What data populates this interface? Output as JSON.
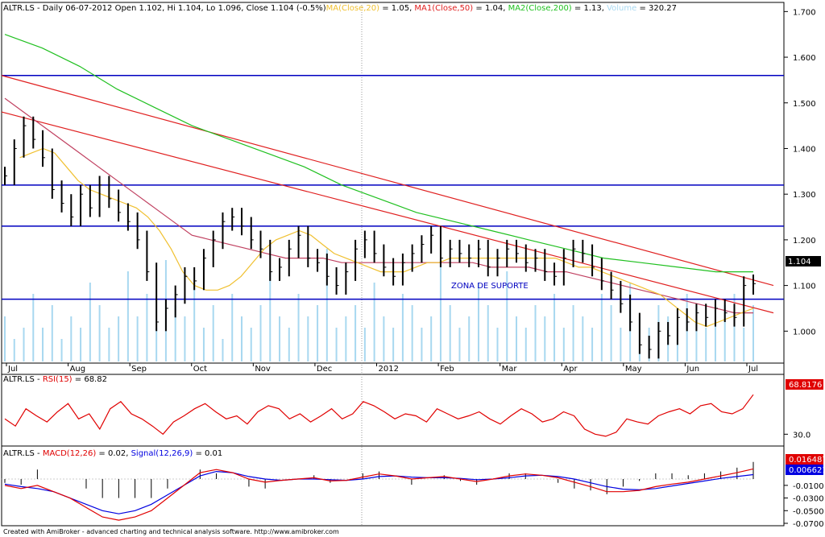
{
  "colors": {
    "background": "#ffffff",
    "price_bar": "#000000",
    "ma20": "#f0c030",
    "ma50": "#c04060",
    "ma200": "#20c020",
    "volume": "#a8d8f0",
    "trendline": "#e02020",
    "hline": "#0000c0",
    "rsi": "#e00000",
    "macd": "#e00000",
    "signal": "#0000e0",
    "hist": "#000000"
  },
  "header": {
    "price": {
      "prefix": "ALTR.LS - Daily 06-07-2012 Open 1.102, Hi 1.104, Lo 1.096, Close 1.104 (-0.5%)",
      "ma": "MA(Close,20)",
      "ma_val": " = 1.05, ",
      "ma1": "MA1(Close,50)",
      "ma1_val": " = 1.04, ",
      "ma2": "MA2(Close,200)",
      "ma2_val": " = 1.13, ",
      "vol": "Volume",
      "vol_val": " = 320.27"
    },
    "rsi": {
      "prefix": "ALTR.LS - ",
      "name": "RSI(15)",
      "val": " = 68.82"
    },
    "macd": {
      "prefix": "ALTR.LS - ",
      "name": "MACD(12,26)",
      "val": " = 0.02, ",
      "sig": "Signal(12,26,9)",
      "sig_val": " = 0.01"
    }
  },
  "annotation": "ZONA DE SUPORTE",
  "footer": "Created with AmiBroker - advanced charting and technical analysis software. http://www.amibroker.com",
  "chart_data": [
    {
      "type": "ohlc",
      "panel": "price",
      "symbol": "ALTR.LS",
      "ylim": [
        0.93,
        1.72
      ],
      "y_ticks": [
        "1.700",
        "1.600",
        "1.500",
        "1.400",
        "1.300",
        "1.200",
        "1.100",
        "1.000"
      ],
      "last_value_label": "1.104",
      "x_month_labels": [
        "Jul",
        "Aug",
        "Sep",
        "Oct",
        "Nov",
        "Dec",
        "2012",
        "Feb",
        "Mar",
        "Apr",
        "May",
        "Jun",
        "Jul"
      ],
      "series": [
        {
          "name": "Close",
          "values": [
            1.34,
            1.4,
            1.45,
            1.42,
            1.38,
            1.31,
            1.28,
            1.25,
            1.3,
            1.27,
            1.32,
            1.29,
            1.26,
            1.24,
            1.2,
            1.13,
            1.02,
            1.05,
            1.08,
            1.12,
            1.11,
            1.16,
            1.2,
            1.24,
            1.25,
            1.23,
            1.2,
            1.18,
            1.13,
            1.14,
            1.18,
            1.21,
            1.16,
            1.15,
            1.12,
            1.1,
            1.13,
            1.18,
            1.2,
            1.17,
            1.14,
            1.12,
            1.15,
            1.17,
            1.19,
            1.21,
            1.16,
            1.18,
            1.17,
            1.16,
            1.18,
            1.14,
            1.16,
            1.18,
            1.17,
            1.15,
            1.16,
            1.13,
            1.12,
            1.16,
            1.18,
            1.17,
            1.14,
            1.11,
            1.09,
            1.06,
            1.02,
            0.97,
            0.96,
            1.0,
            0.99,
            1.03,
            1.02,
            1.04,
            1.03,
            1.05,
            1.04,
            1.03,
            1.1,
            1.104
          ]
        },
        {
          "name": "MA(Close,20)",
          "values": [
            1.38,
            1.39,
            1.4,
            1.39,
            1.36,
            1.33,
            1.31,
            1.3,
            1.29,
            1.28,
            1.27,
            1.25,
            1.22,
            1.18,
            1.13,
            1.1,
            1.09,
            1.09,
            1.1,
            1.12,
            1.15,
            1.18,
            1.2,
            1.21,
            1.22,
            1.21,
            1.19,
            1.17,
            1.16,
            1.15,
            1.14,
            1.13,
            1.13,
            1.13,
            1.14,
            1.15,
            1.15,
            1.16,
            1.16,
            1.16,
            1.16,
            1.16,
            1.16,
            1.16,
            1.16,
            1.16,
            1.16,
            1.15,
            1.14,
            1.14,
            1.13,
            1.12,
            1.11,
            1.1,
            1.09,
            1.08,
            1.06,
            1.04,
            1.02,
            1.01,
            1.02,
            1.03,
            1.04,
            1.05
          ]
        },
        {
          "name": "MA1(Close,50)",
          "values": [
            1.51,
            1.48,
            1.45,
            1.42,
            1.39,
            1.36,
            1.33,
            1.3,
            1.27,
            1.24,
            1.21,
            1.2,
            1.19,
            1.18,
            1.17,
            1.16,
            1.16,
            1.16,
            1.15,
            1.15,
            1.15,
            1.15,
            1.15,
            1.15,
            1.15,
            1.15,
            1.14,
            1.14,
            1.14,
            1.13,
            1.13,
            1.12,
            1.11,
            1.1,
            1.09,
            1.08,
            1.07,
            1.06,
            1.05,
            1.04,
            1.04
          ]
        },
        {
          "name": "MA2(Close,200)",
          "values": [
            1.65,
            1.62,
            1.58,
            1.53,
            1.49,
            1.45,
            1.42,
            1.39,
            1.36,
            1.32,
            1.29,
            1.26,
            1.24,
            1.22,
            1.2,
            1.18,
            1.16,
            1.15,
            1.14,
            1.13,
            1.13
          ]
        },
        {
          "name": "Volume",
          "values": [
            0.4,
            0.2,
            0.3,
            0.6,
            0.3,
            0.5,
            0.2,
            0.4,
            0.3,
            0.7,
            0.5,
            0.3,
            0.4,
            0.8,
            0.4,
            0.6,
            0.3,
            0.9,
            0.5,
            0.4,
            0.7,
            0.3,
            0.5,
            0.2,
            0.6,
            0.4,
            0.3,
            0.5,
            0.8,
            0.4,
            0.3,
            0.6,
            0.4,
            0.5,
            1.0,
            0.3,
            0.4,
            0.5,
            0.3,
            0.7,
            0.4,
            0.3,
            0.6,
            0.5,
            0.3,
            0.4,
            0.9,
            0.5,
            0.3,
            0.4,
            0.7,
            0.5,
            0.3,
            0.8,
            0.4,
            0.3,
            0.5,
            0.4,
            0.6,
            0.3,
            0.5,
            0.4,
            0.3,
            0.6,
            0.5,
            0.3,
            0.7,
            0.4,
            0.3,
            0.5,
            0.4,
            0.3,
            0.6,
            0.5,
            0.3,
            0.4,
            0.5,
            0.6,
            0.3,
            0.5
          ]
        },
        {
          "name": "Trend 1",
          "values": [
            1.56,
            1.1
          ]
        },
        {
          "name": "Trend 2",
          "values": [
            1.48,
            1.04
          ]
        }
      ],
      "hlines": [
        1.56,
        1.32,
        1.23,
        1.07
      ]
    },
    {
      "type": "line",
      "panel": "rsi",
      "y_ticks": [
        "30.0"
      ],
      "last_value_label": "68.8176",
      "series": [
        {
          "name": "RSI(15)",
          "values": [
            45,
            38,
            55,
            48,
            42,
            52,
            60,
            45,
            50,
            35,
            55,
            62,
            50,
            45,
            38,
            30,
            42,
            48,
            55,
            60,
            52,
            45,
            48,
            40,
            52,
            58,
            55,
            45,
            50,
            42,
            48,
            55,
            45,
            50,
            62,
            58,
            52,
            45,
            50,
            48,
            42,
            55,
            50,
            45,
            48,
            52,
            45,
            40,
            48,
            55,
            50,
            42,
            45,
            52,
            48,
            35,
            30,
            28,
            32,
            45,
            42,
            40,
            48,
            52,
            55,
            50,
            58,
            60,
            52,
            50,
            55,
            68.82
          ]
        }
      ]
    },
    {
      "type": "line",
      "panel": "macd",
      "y_ticks": [
        "-0.0100",
        "-0.0300",
        "-0.0500",
        "-0.0700"
      ],
      "last_value_labels": [
        "0.016487",
        "0.006621"
      ],
      "series": [
        {
          "name": "MACD(12,26)",
          "values": [
            -0.01,
            -0.015,
            -0.01,
            -0.02,
            -0.03,
            -0.045,
            -0.06,
            -0.065,
            -0.06,
            -0.05,
            -0.03,
            -0.01,
            0.01,
            0.015,
            0.01,
            0.0,
            -0.005,
            -0.002,
            0.0,
            0.002,
            -0.003,
            -0.002,
            0.003,
            0.008,
            0.005,
            0.0,
            0.002,
            0.004,
            0.0,
            -0.004,
            0.0,
            0.005,
            0.008,
            0.006,
            0.002,
            -0.005,
            -0.012,
            -0.02,
            -0.02,
            -0.018,
            -0.012,
            -0.008,
            -0.005,
            0.0,
            0.005,
            0.01,
            0.016
          ]
        },
        {
          "name": "Signal(12,26,9)",
          "values": [
            -0.008,
            -0.012,
            -0.015,
            -0.02,
            -0.03,
            -0.04,
            -0.05,
            -0.055,
            -0.05,
            -0.04,
            -0.025,
            -0.01,
            0.005,
            0.012,
            0.01,
            0.004,
            0.0,
            -0.002,
            0.0,
            0.0,
            -0.001,
            -0.002,
            0.0,
            0.004,
            0.005,
            0.003,
            0.002,
            0.002,
            0.001,
            -0.001,
            0.0,
            0.002,
            0.005,
            0.006,
            0.004,
            0.0,
            -0.006,
            -0.012,
            -0.016,
            -0.017,
            -0.015,
            -0.011,
            -0.007,
            -0.003,
            0.001,
            0.004,
            0.007
          ]
        }
      ]
    }
  ]
}
